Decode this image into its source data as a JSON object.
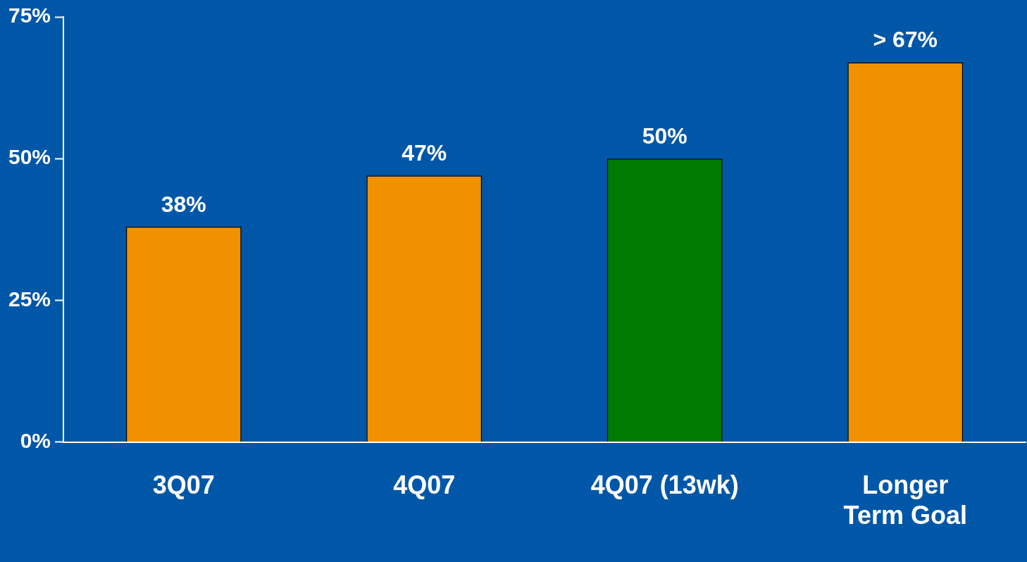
{
  "chart_data": {
    "type": "bar",
    "categories": [
      "3Q07",
      "4Q07",
      "4Q07 (13wk)",
      "Longer Term Goal"
    ],
    "values": [
      38,
      47,
      50,
      67
    ],
    "colors": [
      "#f29100",
      "#f29100",
      "#007a00",
      "#f29100"
    ],
    "value_labels": [
      "38%",
      "47%",
      "50%",
      "> 67%"
    ],
    "ylim": [
      0,
      75
    ],
    "yticks": [
      {
        "value": 0,
        "label": "0%"
      },
      {
        "value": 25,
        "label": "25%"
      },
      {
        "value": 50,
        "label": "50%"
      },
      {
        "value": 75,
        "label": "75%"
      }
    ],
    "grid": false,
    "legend": false
  }
}
